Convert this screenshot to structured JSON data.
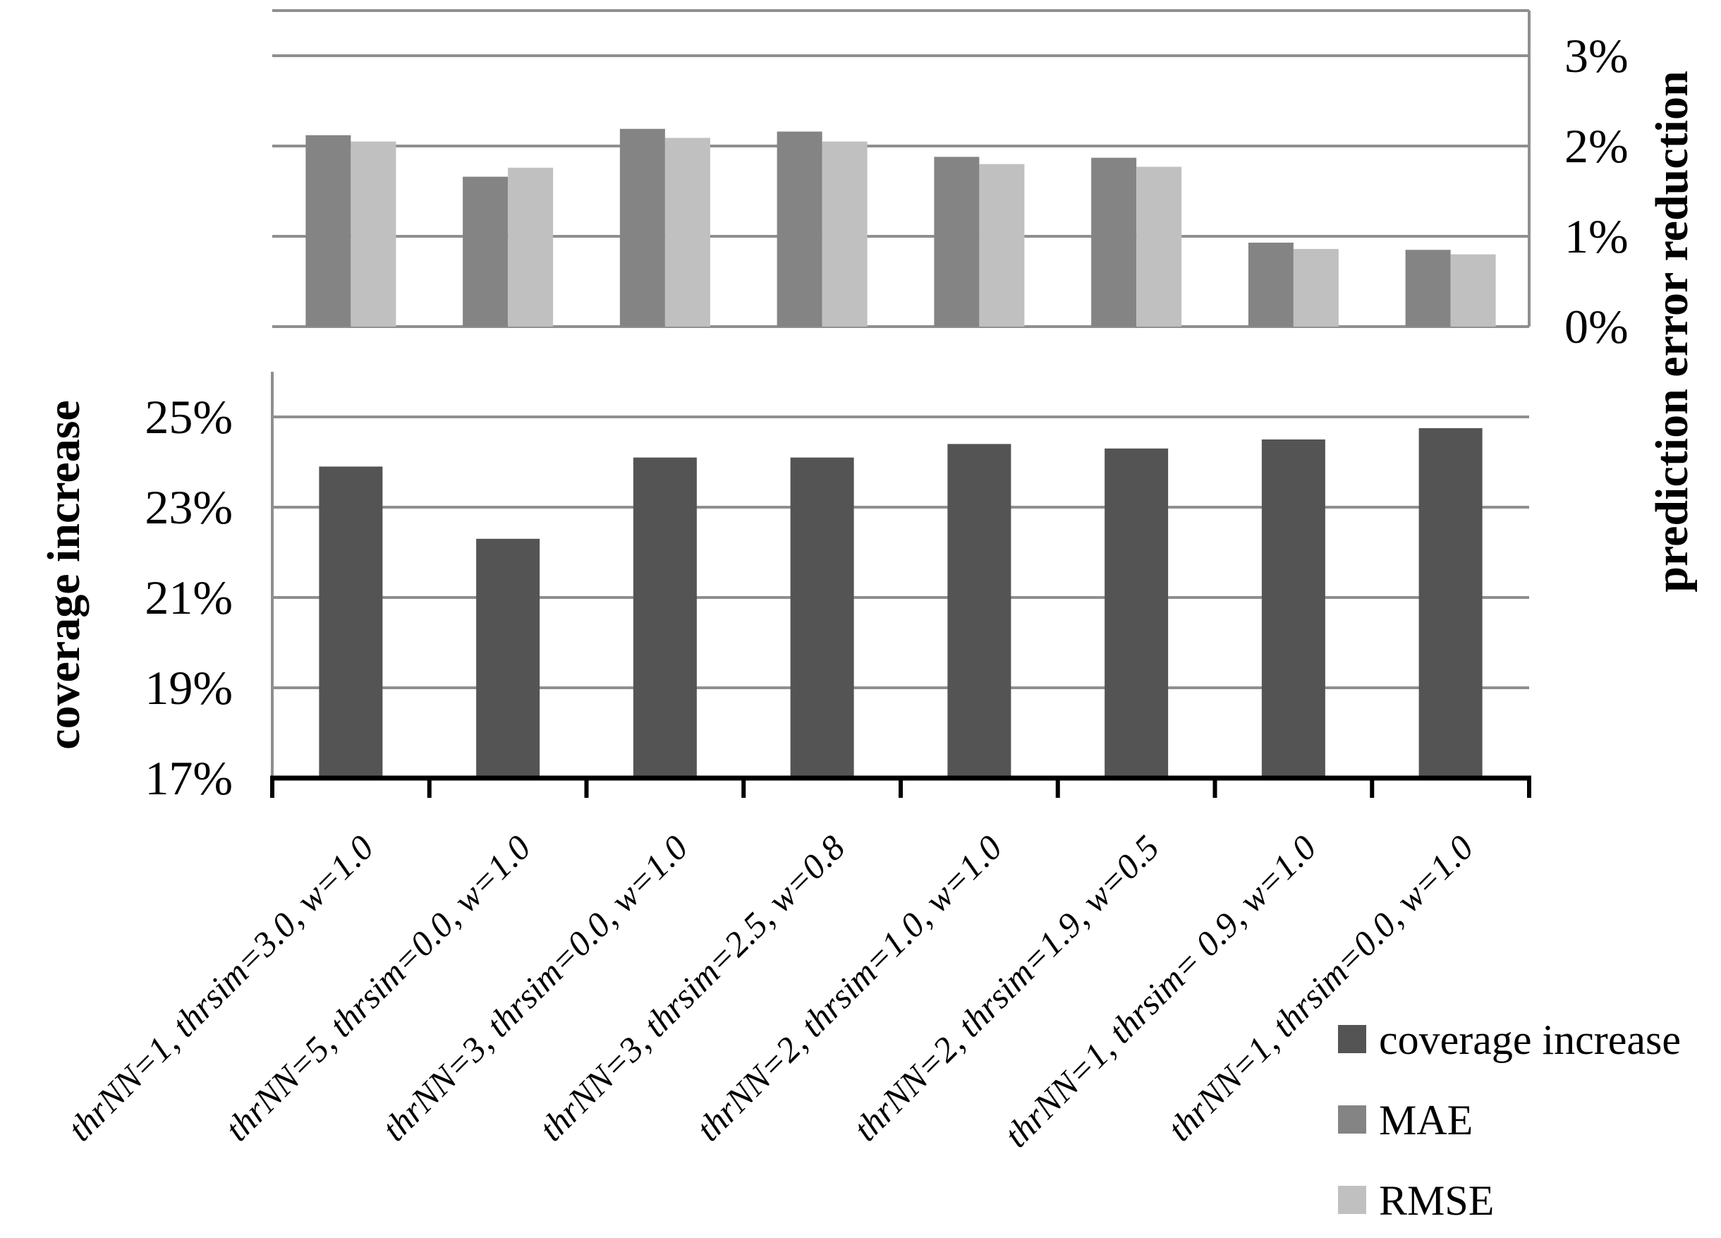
{
  "chart_data": {
    "type": "bar",
    "title": "",
    "layout_hint": "two stacked panels sharing one category axis; top panel right-side value axis, bottom panel left-side value axis; horizontal gridlines on; legend bottom-right",
    "categories": [
      "thrNN=1, thrsim=3.0, w=1.0",
      "thrNN=5, thrsim=0.0, w=1.0",
      "thrNN=3, thrsim=0.0, w=1.0",
      "thrNN=3, thrsim=2.5, w=0.8",
      "thrNN=2, thrsim=1.0, w=1.0",
      "thrNN=2, thrsim=1.9, w=0.5",
      "thrNN=1, thrsim= 0.9, w=1.0",
      "thrNN=1, thrsim=0.0, w=1.0"
    ],
    "top_panel": {
      "ylabel": "prediction error reduction",
      "axis_side": "right",
      "ytick_labels": [
        "0%",
        "1%",
        "2%",
        "3%"
      ],
      "ytick_values": [
        0,
        1,
        2,
        3
      ],
      "ylim": [
        0,
        3.5
      ],
      "grid": true,
      "series": [
        {
          "name": "MAE",
          "color": "#848484",
          "values": [
            2.12,
            1.66,
            2.19,
            2.16,
            1.88,
            1.87,
            0.93,
            0.85
          ]
        },
        {
          "name": "RMSE",
          "color": "#c0c0c0",
          "values": [
            2.05,
            1.76,
            2.09,
            2.05,
            1.8,
            1.77,
            0.86,
            0.8
          ]
        }
      ]
    },
    "bottom_panel": {
      "ylabel": "coverage increase",
      "axis_side": "left",
      "ytick_labels": [
        "17%",
        "19%",
        "21%",
        "23%",
        "25%"
      ],
      "ytick_values": [
        17,
        19,
        21,
        23,
        25
      ],
      "ylim": [
        17,
        26
      ],
      "grid": true,
      "series": [
        {
          "name": "coverage increase",
          "color": "#545454",
          "values": [
            23.9,
            22.3,
            24.1,
            24.1,
            24.4,
            24.3,
            24.5,
            24.75
          ]
        }
      ]
    },
    "legend": {
      "position": "bottom-right",
      "items": [
        {
          "label": "coverage increase",
          "color": "#545454"
        },
        {
          "label": "MAE",
          "color": "#848484"
        },
        {
          "label": "RMSE",
          "color": "#c0c0c0"
        }
      ]
    },
    "colors": {
      "gridline": "#8f8f8f",
      "axis_black": "#000000",
      "background": "#ffffff"
    }
  }
}
